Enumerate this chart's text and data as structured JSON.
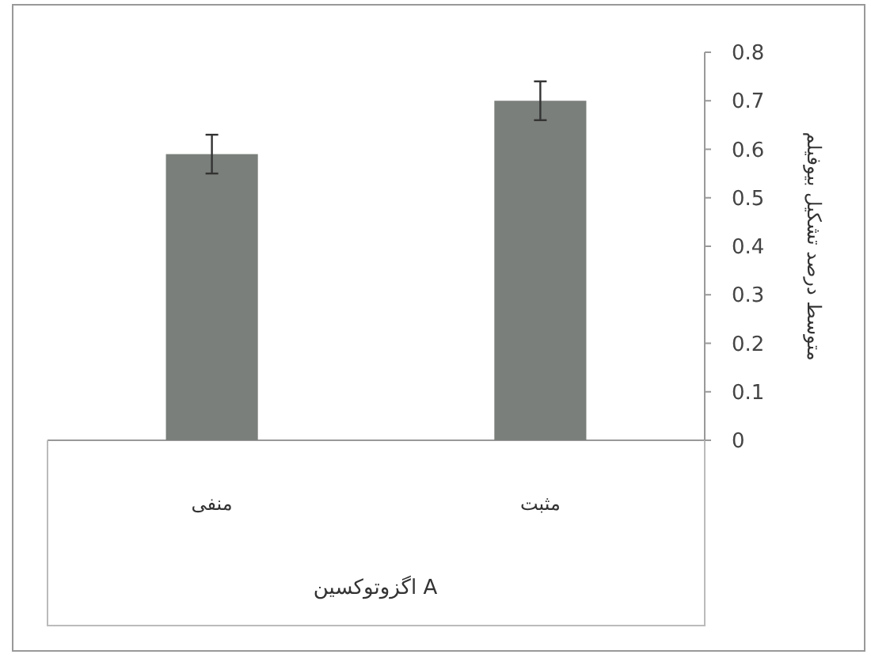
{
  "chart_data": {
    "type": "bar",
    "categories": [
      "منفی",
      "مثبت"
    ],
    "values": [
      0.59,
      0.7
    ],
    "errors": [
      0.04,
      0.04
    ],
    "color": "#7a7f7b",
    "xlabel": "اگزوتوکسین A",
    "ylabel": "متوسط درصد تشکیل بیوفیلم",
    "ylim": [
      0,
      0.8
    ],
    "yticks": [
      0,
      0.1,
      0.2,
      0.3,
      0.4,
      0.5,
      0.6,
      0.7,
      0.8
    ],
    "grid": false
  }
}
